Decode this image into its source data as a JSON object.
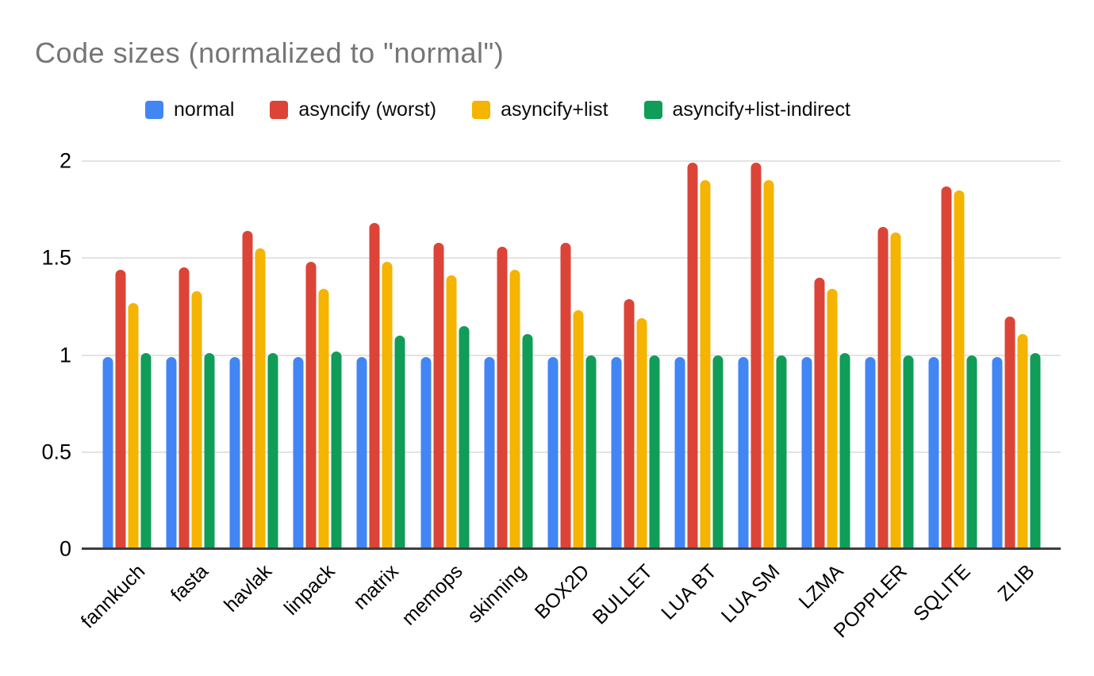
{
  "page": {
    "background": "#ffffff"
  },
  "chart_data": {
    "type": "bar",
    "title": "Code sizes (normalized to \"normal\")",
    "title_color": "#757575",
    "xlabel": "",
    "ylabel": "",
    "ylim": [
      0,
      2
    ],
    "yticks": [
      0,
      0.5,
      1,
      1.5,
      2
    ],
    "ytick_labels": [
      "0",
      "0.5",
      "1",
      "1.5",
      "2"
    ],
    "grid": true,
    "legend_position": "top",
    "axis_colors": {
      "gridline": "#e3e3e3",
      "baseline": "#3d3d3d"
    },
    "categories": [
      "fannkuch",
      "fasta",
      "havlak",
      "linpack",
      "matrix",
      "memops",
      "skinning",
      "BOX2D",
      "BULLET",
      "LUA BT",
      "LUA SM",
      "LZMA",
      "POPPLER",
      "SQLITE",
      "ZLIB"
    ],
    "series": [
      {
        "name": "normal",
        "color": "#4285F4",
        "values": [
          0.99,
          0.99,
          0.99,
          0.99,
          0.99,
          0.99,
          0.99,
          0.99,
          0.99,
          0.99,
          0.99,
          0.99,
          0.99,
          0.99,
          0.99
        ]
      },
      {
        "name": "asyncify (worst)",
        "color": "#DB4437",
        "values": [
          1.44,
          1.45,
          1.64,
          1.48,
          1.68,
          1.58,
          1.56,
          1.58,
          1.29,
          1.99,
          1.99,
          1.4,
          1.66,
          1.87,
          1.2
        ]
      },
      {
        "name": "asyncify+list",
        "color": "#F4B400",
        "values": [
          1.27,
          1.33,
          1.55,
          1.34,
          1.48,
          1.41,
          1.44,
          1.23,
          1.19,
          1.9,
          1.9,
          1.34,
          1.63,
          1.85,
          1.11
        ]
      },
      {
        "name": "asyncify+list-indirect",
        "color": "#0F9D58",
        "values": [
          1.01,
          1.01,
          1.01,
          1.02,
          1.1,
          1.15,
          1.11,
          1.0,
          1.0,
          1.0,
          1.0,
          1.01,
          1.0,
          1.0,
          1.01
        ]
      }
    ]
  }
}
